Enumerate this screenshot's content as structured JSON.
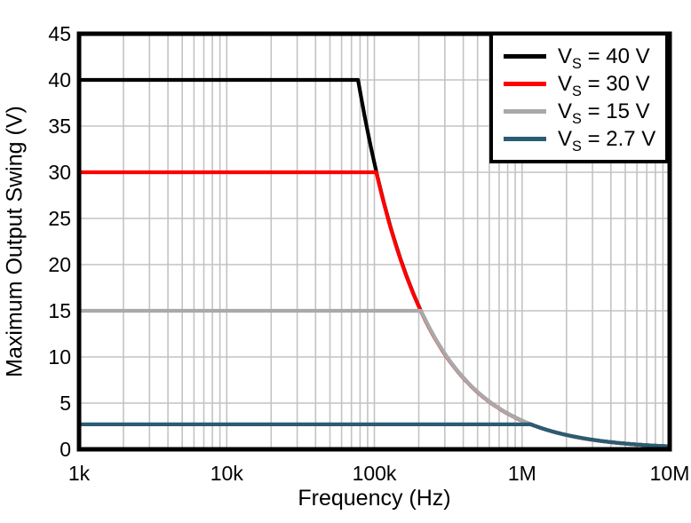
{
  "chart_data": {
    "type": "line",
    "title": "",
    "xlabel": "Frequency (Hz)",
    "ylabel": "Maximum Output Swing (V)",
    "x_scale": "log",
    "xlim": [
      1000,
      10000000
    ],
    "ylim": [
      0,
      45
    ],
    "grid": "on",
    "legend_position": "top-right",
    "y_ticks": [
      0,
      5,
      10,
      15,
      20,
      25,
      30,
      35,
      40,
      45
    ],
    "x_ticks": [
      {
        "value": 1000,
        "label": "1k"
      },
      {
        "value": 10000,
        "label": "10k"
      },
      {
        "value": 100000,
        "label": "100k"
      },
      {
        "value": 1000000,
        "label": "1M"
      },
      {
        "value": 10000000,
        "label": "10M"
      }
    ],
    "envelope_constant_hz_v": 3100000,
    "series": [
      {
        "name": "VS = 40 V",
        "label_base": "V",
        "label_sub": "S",
        "label_rest": " = 40 V",
        "color": "#000000",
        "flat_level_v": 40,
        "corner_freq_hz": 77500,
        "points": [
          [
            1000,
            40
          ],
          [
            10000,
            40
          ],
          [
            77500,
            40
          ],
          [
            100000,
            31
          ],
          [
            200000,
            15.5
          ],
          [
            500000,
            6.2
          ],
          [
            1000000,
            3.1
          ],
          [
            2000000,
            1.6
          ],
          [
            5000000,
            0.6
          ],
          [
            10000000,
            0.3
          ]
        ]
      },
      {
        "name": "VS = 30 V",
        "label_base": "V",
        "label_sub": "S",
        "label_rest": " = 30 V",
        "color": "#FF0000",
        "flat_level_v": 30,
        "corner_freq_hz": 103000,
        "points": [
          [
            1000,
            30
          ],
          [
            10000,
            30
          ],
          [
            103000,
            30
          ],
          [
            200000,
            15.5
          ],
          [
            500000,
            6.2
          ],
          [
            1000000,
            3.1
          ],
          [
            2000000,
            1.6
          ],
          [
            5000000,
            0.6
          ],
          [
            10000000,
            0.3
          ]
        ]
      },
      {
        "name": "VS = 15 V",
        "label_base": "V",
        "label_sub": "S",
        "label_rest": " = 15 V",
        "color": "#A9A9A9",
        "flat_level_v": 15,
        "corner_freq_hz": 207000,
        "points": [
          [
            1000,
            15
          ],
          [
            10000,
            15
          ],
          [
            207000,
            15
          ],
          [
            500000,
            6.2
          ],
          [
            1000000,
            3.1
          ],
          [
            2000000,
            1.6
          ],
          [
            5000000,
            0.6
          ],
          [
            10000000,
            0.3
          ]
        ]
      },
      {
        "name": "VS = 2.7 V",
        "label_base": "V",
        "label_sub": "S",
        "label_rest": " = 2.7 V",
        "color": "#2A5C73",
        "flat_level_v": 2.7,
        "corner_freq_hz": 1150000,
        "points": [
          [
            1000,
            2.7
          ],
          [
            100000,
            2.7
          ],
          [
            1150000,
            2.7
          ],
          [
            2000000,
            1.6
          ],
          [
            5000000,
            0.6
          ],
          [
            10000000,
            0.3
          ]
        ]
      }
    ],
    "styles": {
      "grid_color": "#C3C3C3",
      "frame_color": "#000000",
      "background": "#FFFFFF",
      "text_color": "#000000"
    }
  }
}
